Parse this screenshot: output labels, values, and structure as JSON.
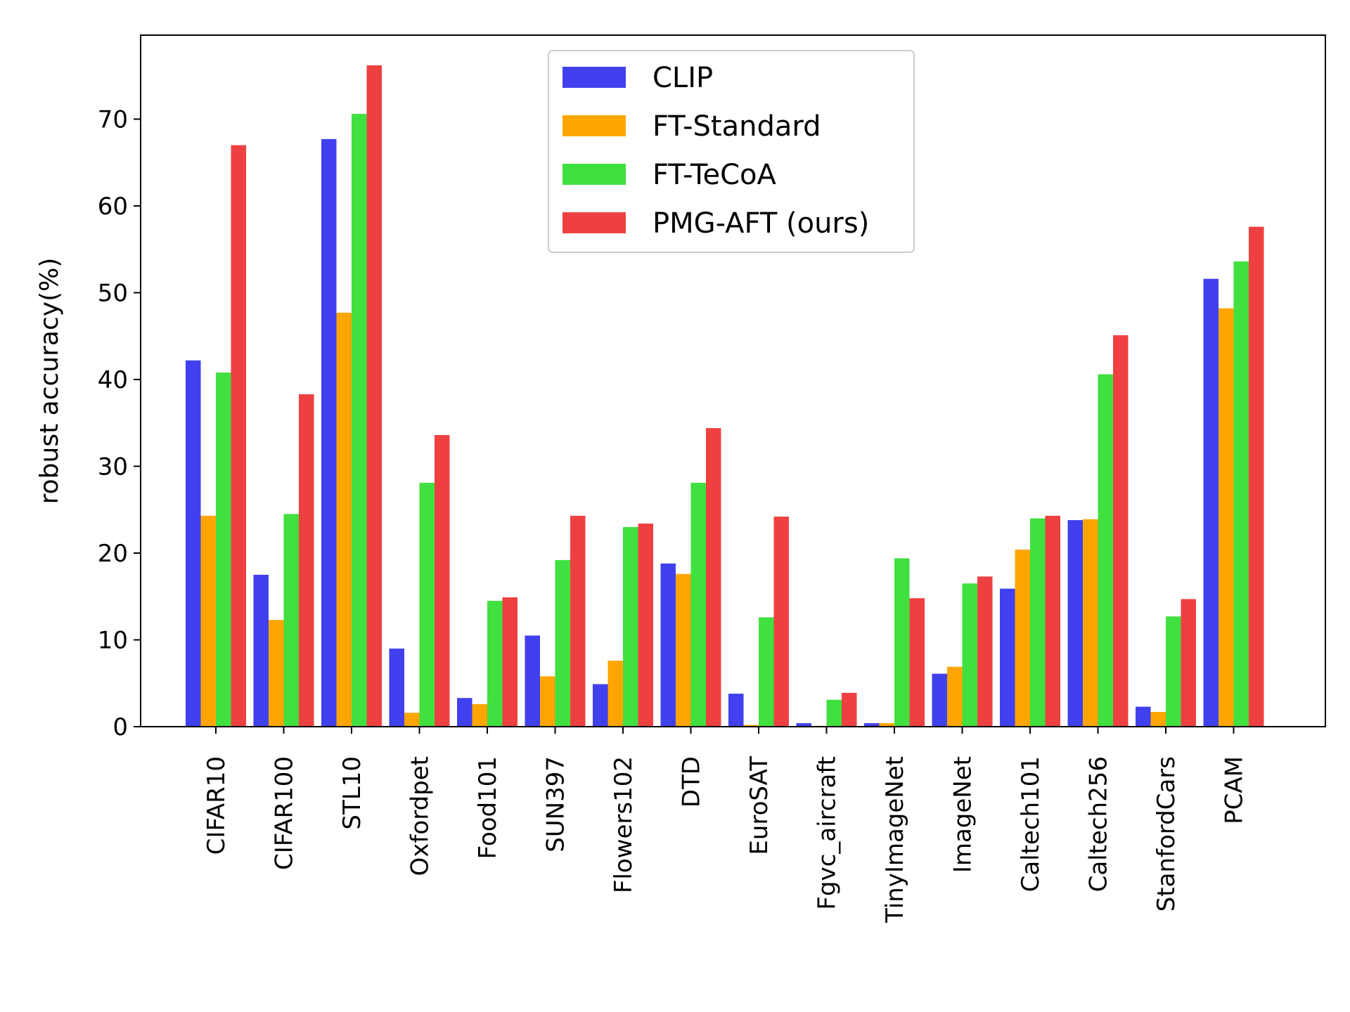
{
  "chart_data": {
    "type": "bar",
    "ylabel": "robust accuracy(%)",
    "xlabel": "",
    "ylim": [
      0,
      80
    ],
    "yticks": [
      0,
      10,
      20,
      30,
      40,
      50,
      60,
      70
    ],
    "legend_position": "top-center",
    "grid": false,
    "categories": [
      "CIFAR10",
      "CIFAR100",
      "STL10",
      "Oxfordpet",
      "Food101",
      "SUN397",
      "Flowers102",
      "DTD",
      "EuroSAT",
      "Fgvc_aircraft",
      "TinyImageNet",
      "ImageNet",
      "Caltech101",
      "Caltech256",
      "StanfordCars",
      "PCAM"
    ],
    "series": [
      {
        "name": "CLIP",
        "color": "#4040ee",
        "values": [
          42.2,
          17.5,
          67.7,
          9.0,
          3.3,
          10.5,
          4.9,
          18.8,
          3.8,
          0.4,
          0.4,
          6.1,
          15.9,
          23.8,
          2.3,
          51.6
        ]
      },
      {
        "name": "FT-Standard",
        "color": "#ffa500",
        "values": [
          24.3,
          12.3,
          47.7,
          1.6,
          2.6,
          5.8,
          7.6,
          17.6,
          0.2,
          0.1,
          0.4,
          6.9,
          20.4,
          23.9,
          1.7,
          48.2
        ]
      },
      {
        "name": "FT-TeCoA",
        "color": "#40e040",
        "values": [
          40.8,
          24.5,
          70.6,
          28.1,
          14.5,
          19.2,
          23.0,
          28.1,
          12.6,
          3.1,
          19.4,
          16.5,
          24.0,
          40.6,
          12.7,
          53.6
        ]
      },
      {
        "name": "PMG-AFT (ours)",
        "color": "#ee4040",
        "values": [
          67.0,
          38.3,
          76.2,
          33.6,
          14.9,
          24.3,
          23.4,
          34.4,
          24.2,
          3.9,
          14.8,
          17.3,
          24.3,
          45.1,
          14.7,
          57.6
        ]
      }
    ]
  }
}
